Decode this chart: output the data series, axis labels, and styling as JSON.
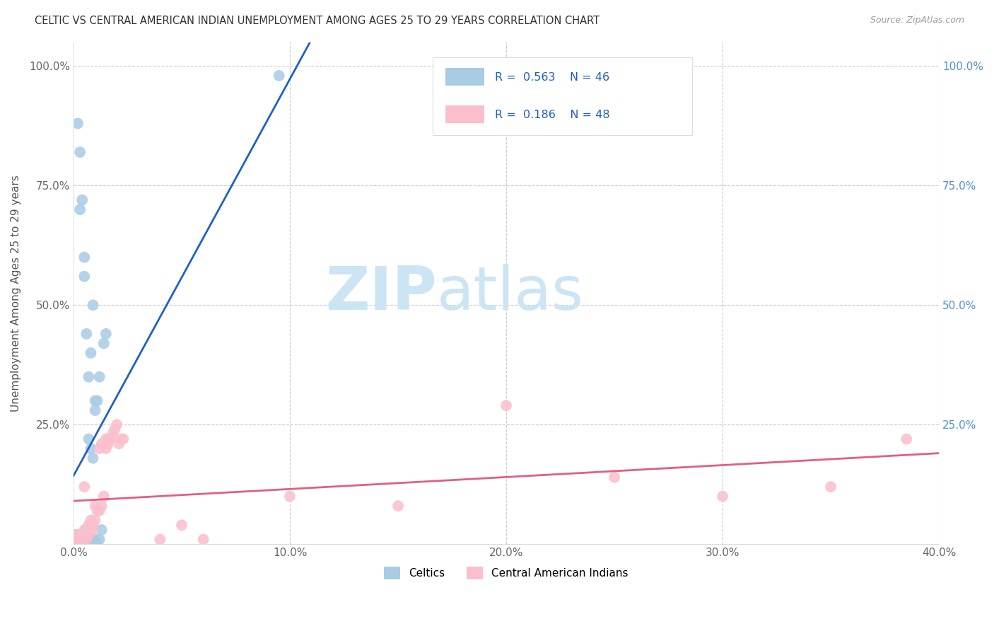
{
  "title": "CELTIC VS CENTRAL AMERICAN INDIAN UNEMPLOYMENT AMONG AGES 25 TO 29 YEARS CORRELATION CHART",
  "source": "Source: ZipAtlas.com",
  "ylabel": "Unemployment Among Ages 25 to 29 years",
  "xlim": [
    0.0,
    0.4
  ],
  "ylim": [
    0.0,
    1.05
  ],
  "celtic_color": "#a8cce4",
  "celtic_edge_color": "#6baed6",
  "cai_color": "#f9bfcc",
  "cai_edge_color": "#f48fb1",
  "trendline_celtic_color": "#2060c0",
  "trendline_cai_color": "#e06080",
  "watermark_color": "#cce5f5",
  "background_color": "#ffffff",
  "grid_color": "#cccccc",
  "legend_r_celtic": "R = 0.563",
  "legend_n_celtic": "N = 46",
  "legend_r_cai": "R = 0.186",
  "legend_n_cai": "N = 48",
  "celtic_x": [
    0.0,
    0.001,
    0.001,
    0.002,
    0.002,
    0.003,
    0.003,
    0.003,
    0.004,
    0.004,
    0.005,
    0.005,
    0.005,
    0.006,
    0.006,
    0.006,
    0.007,
    0.007,
    0.007,
    0.008,
    0.008,
    0.008,
    0.009,
    0.009,
    0.01,
    0.01,
    0.01,
    0.011,
    0.011,
    0.012,
    0.012,
    0.013,
    0.014,
    0.015,
    0.002,
    0.003,
    0.003,
    0.004,
    0.005,
    0.005,
    0.006,
    0.007,
    0.008,
    0.009,
    0.01,
    0.095
  ],
  "celtic_y": [
    0.0,
    0.0,
    0.02,
    0.0,
    0.01,
    0.0,
    0.01,
    0.02,
    0.0,
    0.01,
    0.0,
    0.01,
    0.02,
    0.0,
    0.01,
    0.03,
    0.0,
    0.01,
    0.22,
    0.0,
    0.01,
    0.2,
    0.0,
    0.18,
    0.0,
    0.01,
    0.28,
    0.0,
    0.3,
    0.01,
    0.35,
    0.03,
    0.42,
    0.44,
    0.88,
    0.7,
    0.82,
    0.72,
    0.6,
    0.56,
    0.44,
    0.35,
    0.4,
    0.5,
    0.3,
    0.98
  ],
  "cai_x": [
    0.0,
    0.001,
    0.002,
    0.003,
    0.003,
    0.004,
    0.005,
    0.005,
    0.006,
    0.006,
    0.007,
    0.007,
    0.008,
    0.008,
    0.009,
    0.009,
    0.01,
    0.01,
    0.011,
    0.012,
    0.012,
    0.013,
    0.013,
    0.014,
    0.015,
    0.015,
    0.016,
    0.016,
    0.017,
    0.018,
    0.019,
    0.02,
    0.021,
    0.022,
    0.023,
    0.04,
    0.05,
    0.06,
    0.1,
    0.15,
    0.2,
    0.25,
    0.3,
    0.35,
    0.385,
    0.003,
    0.004,
    0.005
  ],
  "cai_y": [
    0.01,
    0.02,
    0.01,
    0.01,
    0.02,
    0.01,
    0.02,
    0.03,
    0.01,
    0.03,
    0.02,
    0.04,
    0.03,
    0.05,
    0.03,
    0.04,
    0.05,
    0.08,
    0.07,
    0.07,
    0.2,
    0.08,
    0.21,
    0.1,
    0.2,
    0.22,
    0.21,
    0.22,
    0.22,
    0.23,
    0.24,
    0.25,
    0.21,
    0.22,
    0.22,
    0.01,
    0.04,
    0.01,
    0.1,
    0.08,
    0.29,
    0.14,
    0.1,
    0.12,
    0.22,
    0.0,
    0.0,
    0.12
  ]
}
